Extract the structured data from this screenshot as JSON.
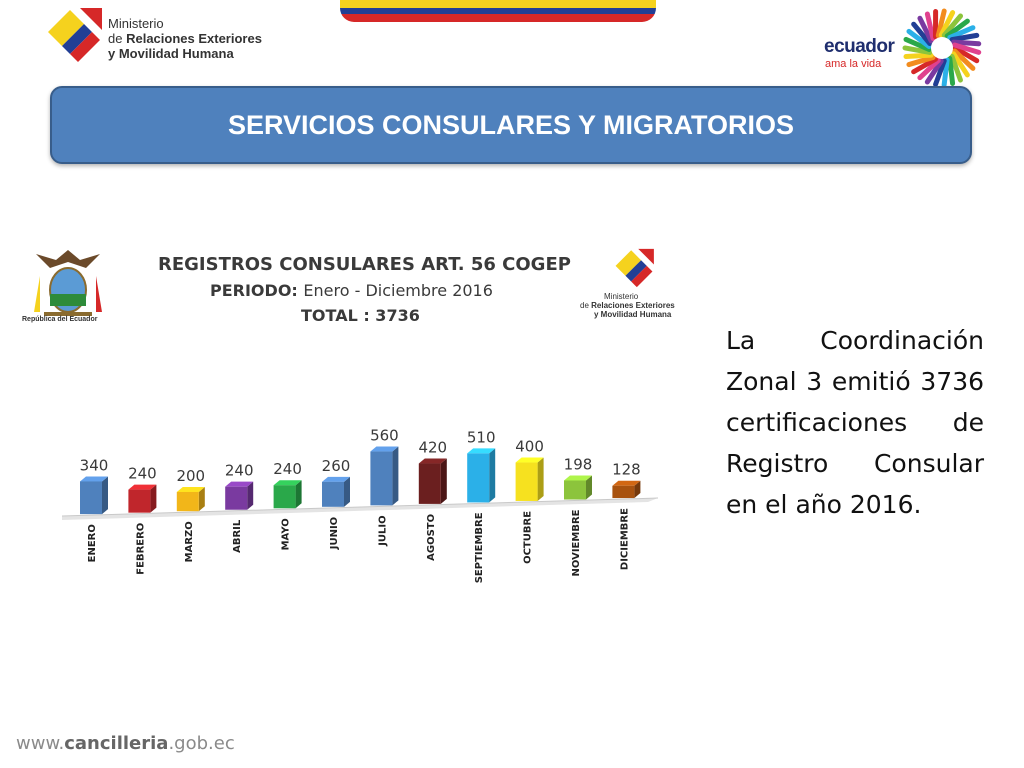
{
  "header": {
    "ministry_logo": {
      "line1": "Ministerio",
      "line2_prefix": "de",
      "line2_bold": "Relaciones Exteriores",
      "line3": "y Movilidad Humana"
    },
    "ecuador_logo": {
      "word": "ecuador",
      "tagline": "ama la vida"
    },
    "flag_colors": [
      "#f5d21e",
      "#223f95",
      "#d62828"
    ]
  },
  "slide": {
    "title": "SERVICIOS CONSULARES Y MIGRATORIOS"
  },
  "chart_header": {
    "title": "REGISTROS CONSULARES ART. 56 COGEP",
    "period_label": "PERIODO:",
    "period_value": "Enero - Diciembre 2016",
    "total": "TOTAL : 3736",
    "coat_label": "República del Ecuador",
    "small_logo": {
      "line1": "Ministerio",
      "line2_prefix": "de",
      "line2_bold": "Relaciones Exteriores",
      "line3": "y Movilidad Humana"
    }
  },
  "chart_data": {
    "type": "bar",
    "title": "REGISTROS CONSULARES ART. 56 COGEP",
    "categories": [
      "ENERO",
      "FEBRERO",
      "MARZO",
      "ABRIL",
      "MAYO",
      "JUNIO",
      "JULIO",
      "AGOSTO",
      "SEPTIEMBRE",
      "OCTUBRE",
      "NOVIEMBRE",
      "DICIEMBRE"
    ],
    "values": [
      340,
      240,
      200,
      240,
      240,
      260,
      560,
      420,
      510,
      400,
      198,
      128
    ],
    "colors": [
      "#4f81bd",
      "#c0262c",
      "#f2b619",
      "#7a3aa0",
      "#2aa84a",
      "#4f81bd",
      "#4f81bd",
      "#6b1f1f",
      "#2bb0e8",
      "#f6e11f",
      "#8cc43c",
      "#a8520f"
    ],
    "xlabel": "",
    "ylabel": "",
    "ylim": [
      0,
      600
    ],
    "grid": false,
    "legend": "none"
  },
  "description": {
    "text": "La Coordinación Zonal 3 emitió 3736 certificaciones de Registro Consular en el año 2016."
  },
  "footer": {
    "prefix": "www.",
    "bold": "cancilleria",
    "suffix": ".gob.ec"
  }
}
